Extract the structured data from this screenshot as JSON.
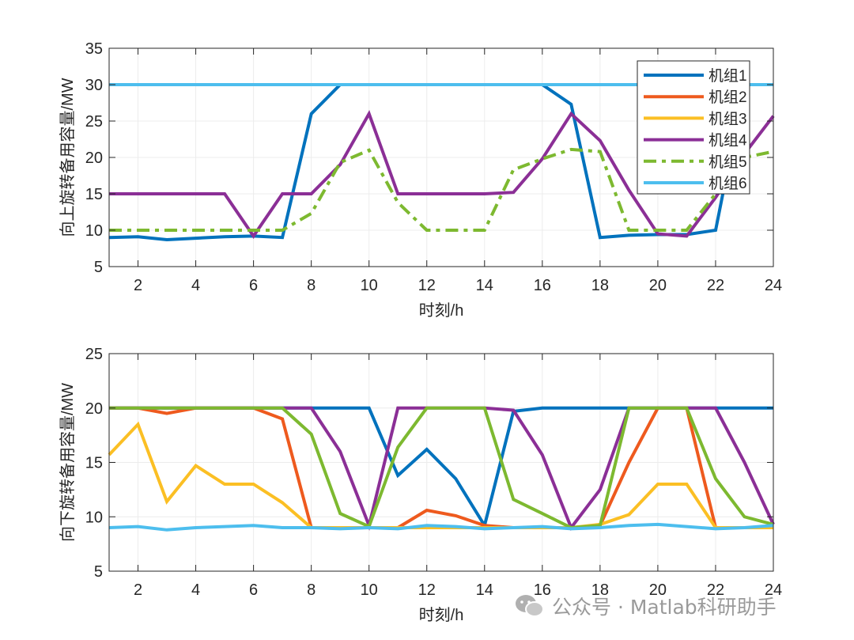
{
  "colors": {
    "unit1": "#0072BD",
    "unit2": "#EE5A1E",
    "unit3": "#FBBF24",
    "unit4": "#8B2F96",
    "unit5": "#7DB930",
    "unit6": "#4DBEEE"
  },
  "watermark": "公众号 · Matlab科研助手",
  "chart_data": [
    {
      "type": "line",
      "xlabel": "时刻/h",
      "ylabel": "向上旋转备用容量/MW",
      "xlim": [
        1,
        24
      ],
      "ylim": [
        5,
        35
      ],
      "xticks": [
        2,
        4,
        6,
        8,
        10,
        12,
        14,
        16,
        18,
        20,
        22,
        24
      ],
      "yticks": [
        5,
        10,
        15,
        20,
        25,
        30,
        35
      ],
      "grid": true,
      "legend": "top-right",
      "x": [
        1,
        2,
        3,
        4,
        5,
        6,
        7,
        8,
        9,
        10,
        11,
        12,
        13,
        14,
        15,
        16,
        17,
        18,
        19,
        20,
        21,
        22,
        23,
        24
      ],
      "series": [
        {
          "name": "机组1",
          "style": "solid",
          "values": [
            9,
            9.1,
            8.7,
            8.9,
            9.1,
            9.2,
            9,
            26,
            30,
            30,
            30,
            30,
            30,
            30,
            30,
            30,
            27.3,
            9,
            9.3,
            9.4,
            9.4,
            10,
            30,
            30
          ]
        },
        {
          "name": "机组2",
          "style": "solid",
          "values": [
            30,
            30,
            30,
            30,
            30,
            30,
            30,
            30,
            30,
            30,
            30,
            30,
            30,
            30,
            30,
            30,
            30,
            30,
            30,
            30,
            30,
            30,
            30,
            30
          ]
        },
        {
          "name": "机组3",
          "style": "solid",
          "values": [
            30,
            30,
            30,
            30,
            30,
            30,
            30,
            30,
            30,
            30,
            30,
            30,
            30,
            30,
            30,
            30,
            30,
            30,
            30,
            30,
            30,
            30,
            30,
            30
          ]
        },
        {
          "name": "机组4",
          "style": "solid",
          "values": [
            15,
            15,
            15,
            15,
            15,
            9.2,
            15,
            15,
            19,
            26,
            15,
            15,
            15,
            15,
            15.2,
            19.8,
            26,
            22.3,
            15.5,
            9.5,
            9.2,
            14.5,
            20.5,
            25.7
          ]
        },
        {
          "name": "机组5",
          "style": "dashdot",
          "values": [
            10,
            10,
            10,
            10,
            10,
            10,
            10,
            12.3,
            19.3,
            21,
            13.8,
            10,
            10,
            10,
            18.3,
            19.8,
            21.1,
            20.8,
            10,
            10,
            10,
            15,
            20,
            20.8
          ]
        },
        {
          "name": "机组6",
          "style": "solid",
          "values": [
            30,
            30,
            30,
            30,
            30,
            30,
            30,
            30,
            30,
            30,
            30,
            30,
            30,
            30,
            30,
            30,
            30,
            30,
            30,
            30,
            30,
            30,
            30,
            30
          ]
        }
      ]
    },
    {
      "type": "line",
      "xlabel": "时刻/h",
      "ylabel": "向下旋转备用容量/MW",
      "xlim": [
        1,
        24
      ],
      "ylim": [
        5,
        25
      ],
      "xticks": [
        2,
        4,
        6,
        8,
        10,
        12,
        14,
        16,
        18,
        20,
        22,
        24
      ],
      "yticks": [
        5,
        10,
        15,
        20,
        25
      ],
      "grid": true,
      "x": [
        1,
        2,
        3,
        4,
        5,
        6,
        7,
        8,
        9,
        10,
        11,
        12,
        13,
        14,
        15,
        16,
        17,
        18,
        19,
        20,
        21,
        22,
        23,
        24
      ],
      "series": [
        {
          "name": "机组1",
          "style": "solid",
          "values": [
            20,
            20,
            20,
            20,
            20,
            20,
            20,
            20,
            20,
            20,
            13.8,
            16.2,
            13.5,
            9.2,
            19.7,
            20,
            20,
            20,
            20,
            20,
            20,
            20,
            20,
            20
          ]
        },
        {
          "name": "机组2",
          "style": "solid",
          "values": [
            20,
            20,
            19.5,
            20,
            20,
            20,
            19,
            9,
            9,
            9,
            9,
            10.6,
            10.1,
            9.2,
            9,
            9,
            9,
            9.2,
            15,
            20,
            20,
            9,
            9,
            9
          ]
        },
        {
          "name": "机组3",
          "style": "solid",
          "values": [
            15.7,
            18.5,
            11.4,
            14.7,
            13,
            13,
            11.3,
            9,
            9,
            9,
            9,
            9,
            9,
            9,
            9,
            9,
            9,
            9.3,
            10.2,
            13,
            13,
            9,
            9,
            9
          ]
        },
        {
          "name": "机组4",
          "style": "solid",
          "values": [
            20,
            20,
            20,
            20,
            20,
            20,
            20,
            20,
            16,
            9.2,
            20,
            20,
            20,
            20,
            19.8,
            15.7,
            9,
            12.5,
            20,
            20,
            20,
            20,
            15,
            9.3
          ]
        },
        {
          "name": "机组5",
          "style": "solid",
          "values": [
            20,
            20,
            20,
            20,
            20,
            20,
            20,
            17.6,
            10.3,
            9.1,
            16.4,
            20,
            20,
            20,
            11.6,
            10.3,
            9,
            9.2,
            20,
            20,
            20,
            13.5,
            10,
            9.3
          ]
        },
        {
          "name": "机组6",
          "style": "solid",
          "values": [
            9,
            9.1,
            8.8,
            9,
            9.1,
            9.2,
            9,
            9,
            8.9,
            9,
            8.9,
            9.2,
            9.1,
            8.9,
            9,
            9.1,
            8.9,
            9,
            9.2,
            9.3,
            9.1,
            8.9,
            9,
            9.2
          ]
        }
      ]
    }
  ]
}
